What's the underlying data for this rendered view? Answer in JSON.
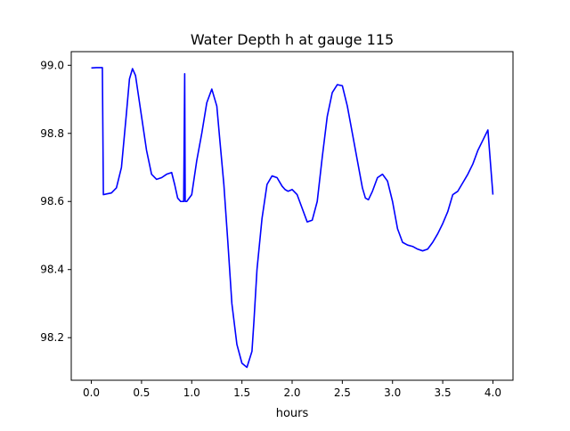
{
  "chart_data": {
    "type": "line",
    "title": "Water Depth h at gauge 115",
    "xlabel": "hours",
    "ylabel": "",
    "xlim": [
      -0.2,
      4.2
    ],
    "ylim": [
      98.075,
      99.04
    ],
    "xticks": [
      0.0,
      0.5,
      1.0,
      1.5,
      2.0,
      2.5,
      3.0,
      3.5,
      4.0
    ],
    "xtick_labels": [
      "0.0",
      "0.5",
      "1.0",
      "1.5",
      "2.0",
      "2.5",
      "3.0",
      "3.5",
      "4.0"
    ],
    "yticks": [
      98.2,
      98.4,
      98.6,
      98.8,
      99.0
    ],
    "ytick_labels": [
      "98.2",
      "98.4",
      "98.6",
      "98.8",
      "99.0"
    ],
    "grid": false,
    "legend": "none",
    "line_color": "#0000ff",
    "series": [
      {
        "x": [
          0.0,
          0.05,
          0.11,
          0.12,
          0.15,
          0.2,
          0.25,
          0.3,
          0.35,
          0.38,
          0.41,
          0.44,
          0.46,
          0.5,
          0.55,
          0.6,
          0.65,
          0.7,
          0.75,
          0.8,
          0.83,
          0.86,
          0.89,
          0.92,
          0.93,
          0.935,
          0.94,
          0.95,
          1.0,
          1.05,
          1.1,
          1.15,
          1.2,
          1.25,
          1.28,
          1.32,
          1.36,
          1.4,
          1.45,
          1.5,
          1.55,
          1.6,
          1.62,
          1.65,
          1.7,
          1.75,
          1.8,
          1.85,
          1.9,
          1.93,
          1.96,
          2.0,
          2.05,
          2.1,
          2.15,
          2.2,
          2.25,
          2.3,
          2.35,
          2.4,
          2.45,
          2.5,
          2.55,
          2.6,
          2.65,
          2.7,
          2.73,
          2.76,
          2.8,
          2.85,
          2.9,
          2.95,
          3.0,
          3.05,
          3.1,
          3.15,
          3.2,
          3.25,
          3.3,
          3.35,
          3.4,
          3.45,
          3.5,
          3.55,
          3.6,
          3.65,
          3.7,
          3.75,
          3.8,
          3.85,
          3.9,
          3.95,
          4.0
        ],
        "y": [
          98.992,
          98.993,
          98.993,
          98.62,
          98.622,
          98.625,
          98.64,
          98.7,
          98.86,
          98.96,
          98.99,
          98.97,
          98.93,
          98.85,
          98.75,
          98.68,
          98.665,
          98.67,
          98.68,
          98.685,
          98.65,
          98.61,
          98.6,
          98.6,
          98.975,
          98.6,
          98.6,
          98.6,
          98.62,
          98.72,
          98.8,
          98.89,
          98.93,
          98.88,
          98.78,
          98.65,
          98.48,
          98.3,
          98.18,
          98.125,
          98.113,
          98.16,
          98.25,
          98.4,
          98.55,
          98.65,
          98.675,
          98.67,
          98.645,
          98.635,
          98.63,
          98.635,
          98.62,
          98.58,
          98.54,
          98.545,
          98.6,
          98.73,
          98.85,
          98.92,
          98.943,
          98.94,
          98.88,
          98.8,
          98.72,
          98.64,
          98.61,
          98.605,
          98.63,
          98.67,
          98.68,
          98.66,
          98.6,
          98.52,
          98.48,
          98.472,
          98.468,
          98.46,
          98.455,
          98.46,
          98.48,
          98.505,
          98.535,
          98.57,
          98.62,
          98.63,
          98.655,
          98.68,
          98.71,
          98.75,
          98.78,
          98.81,
          98.62
        ]
      }
    ]
  }
}
